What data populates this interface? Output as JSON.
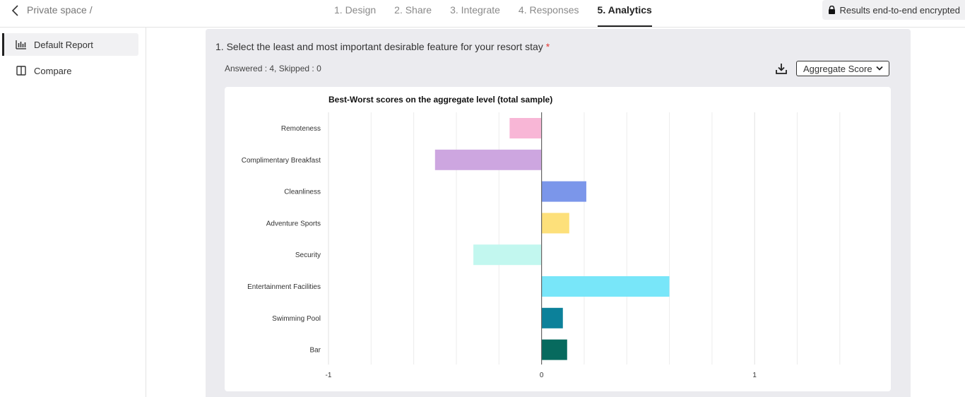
{
  "header": {
    "breadcrumb": "Private space",
    "breadcrumb_sep": "/",
    "steps": [
      {
        "label": "1. Design"
      },
      {
        "label": "2. Share"
      },
      {
        "label": "3. Integrate"
      },
      {
        "label": "4. Responses"
      },
      {
        "label": "5. Analytics"
      }
    ],
    "active_step": 4,
    "encryption": "Results end-to-end encrypted"
  },
  "sidebar": {
    "items": [
      {
        "label": "Default Report",
        "icon": "bar-chart-icon"
      },
      {
        "label": "Compare",
        "icon": "book-icon"
      }
    ]
  },
  "question": {
    "title": "1. Select the least and most important desirable feature for your resort stay",
    "required_mark": "*",
    "stats": "Answered : 4, Skipped : 0",
    "score_select": "Aggregate Score"
  },
  "chart_data": {
    "type": "bar",
    "orientation": "horizontal",
    "title": "Best-Worst scores on the aggregate level (total sample)",
    "categories": [
      "Remoteness",
      "Complimentary Breakfast",
      "Cleanliness",
      "Adventure Sports",
      "Security",
      "Entertainment Facilities",
      "Swimming Pool",
      "Bar"
    ],
    "values": [
      -0.15,
      -0.5,
      0.21,
      0.13,
      -0.32,
      0.6,
      0.1,
      0.12
    ],
    "colors": [
      "#f8b6d6",
      "#cda6e0",
      "#7b96ea",
      "#fde07a",
      "#c2f7ef",
      "#78e6f9",
      "#0c819a",
      "#076a5e"
    ],
    "xlim": [
      -1,
      1.5
    ],
    "xticks": [
      "-1",
      "0",
      "1"
    ],
    "grid": true
  }
}
